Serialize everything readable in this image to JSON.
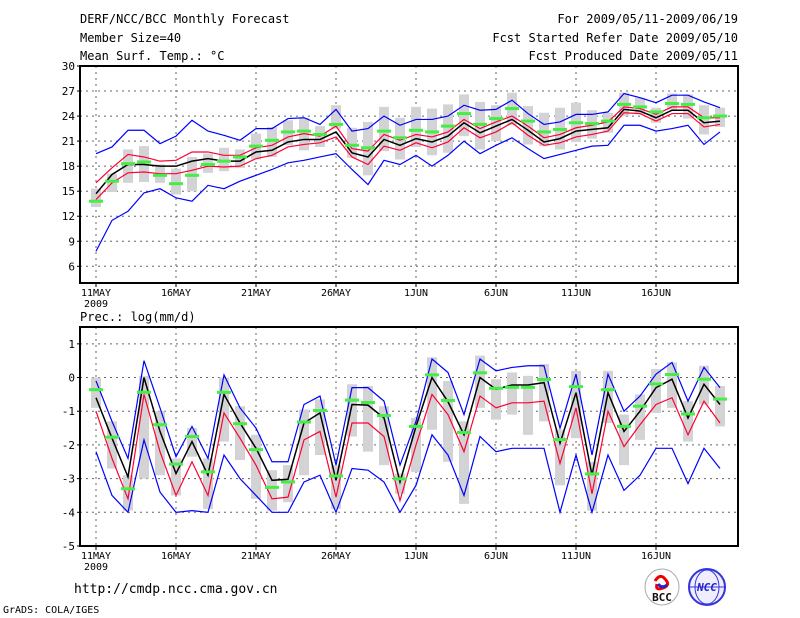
{
  "header": {
    "title": "DERF/NCC/BCC Monthly Forecast",
    "member_size": "Member Size=40",
    "variable": "Mean Surf. Temp.: °C",
    "period": "For 2009/05/11-2009/06/19",
    "refer_date": "Fcst Started Refer Date 2009/05/10",
    "produced_date": "Fcst Produced Date 2009/05/11"
  },
  "footer": {
    "url": "http://cmdp.ncc.cma.gov.cn",
    "credit": "GrADS: COLA/IGES",
    "logos": [
      "BCC",
      "NCC"
    ]
  },
  "colors": {
    "mean": "#000000",
    "quartile": "#ff0033",
    "extreme": "#0000ff",
    "observed": "#44ee44",
    "box": "#d3d3d6"
  },
  "chart_data": [
    {
      "type": "line",
      "title": "Mean Surf. Temp.: °C",
      "ylim": [
        4,
        30
      ],
      "yticks": [
        6,
        9,
        12,
        15,
        18,
        21,
        24,
        27,
        30
      ],
      "xtick_labels": [
        "11MAY",
        "16MAY",
        "21MAY",
        "26MAY",
        "1JUN",
        "6JUN",
        "11JUN",
        "16JUN"
      ],
      "xtick_year": "2009",
      "grid": true,
      "days": 40,
      "series": [
        {
          "name": "max",
          "color": "extreme",
          "values": [
            19.5,
            20.3,
            22.3,
            22.3,
            20.7,
            21.6,
            23.5,
            22.2,
            21.7,
            21.1,
            22.5,
            22.5,
            23.7,
            23.8,
            23.0,
            24.8,
            22.2,
            22.5,
            24.0,
            22.9,
            23.6,
            23.6,
            24.0,
            25.3,
            24.7,
            24.8,
            25.9,
            24.3,
            23.0,
            23.3,
            24.2,
            24.2,
            24.5,
            26.7,
            26.2,
            25.6,
            26.5,
            26.5,
            25.7,
            25.0
          ]
        },
        {
          "name": "min",
          "color": "extreme",
          "values": [
            7.8,
            11.5,
            12.6,
            14.8,
            15.3,
            14.2,
            13.8,
            15.7,
            15.3,
            16.2,
            16.9,
            17.6,
            18.4,
            18.7,
            19.1,
            19.5,
            17.6,
            15.8,
            18.7,
            18.2,
            19.3,
            18.0,
            19.3,
            21.0,
            19.5,
            20.5,
            21.4,
            20.1,
            18.9,
            19.4,
            19.9,
            20.4,
            20.5,
            22.9,
            22.9,
            22.2,
            22.5,
            22.9,
            20.6,
            22.1
          ]
        },
        {
          "name": "upper",
          "color": "quartile",
          "values": [
            16.0,
            17.8,
            19.4,
            19.1,
            18.6,
            18.7,
            19.7,
            19.7,
            19.3,
            19.3,
            20.2,
            20.5,
            21.5,
            21.9,
            21.6,
            22.8,
            20.1,
            19.8,
            21.8,
            21.1,
            21.8,
            21.5,
            22.1,
            23.6,
            22.5,
            23.3,
            24.0,
            22.8,
            21.4,
            21.8,
            22.6,
            22.9,
            23.3,
            25.1,
            24.9,
            24.2,
            25.1,
            25.1,
            23.8,
            23.8
          ]
        },
        {
          "name": "lower",
          "color": "quartile",
          "values": [
            14.0,
            16.0,
            17.2,
            17.3,
            17.1,
            17.1,
            17.5,
            18.0,
            17.9,
            18.0,
            18.9,
            19.3,
            20.3,
            20.6,
            20.8,
            21.5,
            19.1,
            18.2,
            20.4,
            19.9,
            20.8,
            20.2,
            20.9,
            22.6,
            21.4,
            22.1,
            23.2,
            21.7,
            20.5,
            20.8,
            21.5,
            21.8,
            22.2,
            24.4,
            24.3,
            23.4,
            24.3,
            24.3,
            22.7,
            23.0
          ]
        },
        {
          "name": "mean",
          "color": "mean",
          "values": [
            14.7,
            17.0,
            18.2,
            18.2,
            18.0,
            18.0,
            18.6,
            18.9,
            18.6,
            18.6,
            19.7,
            19.9,
            20.9,
            21.2,
            21.2,
            22.1,
            19.6,
            19.1,
            21.2,
            20.5,
            21.3,
            20.9,
            21.6,
            23.2,
            22.0,
            22.8,
            23.6,
            22.3,
            20.9,
            21.3,
            22.2,
            22.4,
            22.6,
            24.8,
            24.6,
            23.8,
            24.7,
            24.7,
            23.2,
            23.4
          ]
        }
      ],
      "box_low": [
        13.1,
        14.9,
        16.0,
        16.1,
        16.0,
        14.6,
        15.0,
        17.2,
        17.4,
        17.8,
        18.8,
        19.1,
        20.5,
        19.9,
        20.3,
        22.5,
        19.0,
        16.9,
        19.8,
        18.8,
        20.3,
        19.3,
        19.6,
        21.6,
        20.0,
        21.0,
        22.9,
        20.6,
        20.4,
        20.0,
        20.9,
        21.3,
        22.0,
        24.0,
        24.2,
        23.2,
        24.8,
        23.7,
        21.8,
        22.7
      ],
      "box_high": [
        15.3,
        17.1,
        20.0,
        20.4,
        18.2,
        17.7,
        19.1,
        19.5,
        20.2,
        20.0,
        21.9,
        22.7,
        23.5,
        23.8,
        22.8,
        25.3,
        22.6,
        23.3,
        25.1,
        23.8,
        25.1,
        24.9,
        25.4,
        26.6,
        25.7,
        25.3,
        26.8,
        25.2,
        24.4,
        25.0,
        25.6,
        24.7,
        24.4,
        26.8,
        26.2,
        25.0,
        26.7,
        26.6,
        25.3,
        25.0
      ],
      "observed": [
        13.8,
        16.2,
        18.3,
        18.5,
        16.9,
        15.9,
        16.9,
        18.2,
        18.6,
        19.1,
        20.4,
        21.1,
        22.1,
        22.2,
        21.8,
        23.0,
        20.5,
        20.2,
        22.2,
        21.4,
        22.3,
        22.1,
        22.8,
        24.3,
        23.0,
        23.7,
        24.9,
        23.4,
        22.1,
        22.4,
        23.2,
        23.1,
        23.4,
        25.4,
        25.1,
        24.5,
        25.5,
        25.4,
        23.8,
        24.0
      ]
    },
    {
      "type": "line",
      "title": "Prec.: log(mm/d)",
      "ylim": [
        -5,
        1.5
      ],
      "yticks": [
        -5,
        -4,
        -3,
        -2,
        -1,
        0,
        1
      ],
      "xtick_labels": [
        "11MAY",
        "16MAY",
        "21MAY",
        "26MAY",
        "1JUN",
        "6JUN",
        "11JUN",
        "16JUN"
      ],
      "xtick_year": "2009",
      "grid": true,
      "days": 40,
      "series": [
        {
          "name": "max",
          "color": "extreme",
          "values": [
            -0.1,
            -1.3,
            -2.4,
            0.5,
            -0.9,
            -2.35,
            -1.45,
            -2.4,
            0.08,
            -0.9,
            -1.5,
            -2.5,
            -2.5,
            -0.8,
            -0.55,
            -2.6,
            -0.3,
            -0.3,
            -0.7,
            -2.6,
            -1.3,
            0.55,
            0.15,
            -1.1,
            0.55,
            0.2,
            0.3,
            0.35,
            0.35,
            -1.5,
            0.1,
            -2.3,
            0.1,
            -1.0,
            -0.55,
            0.1,
            0.45,
            -0.7,
            0.3,
            -0.3
          ]
        },
        {
          "name": "min",
          "color": "extreme",
          "values": [
            -2.2,
            -3.5,
            -4.0,
            -1.85,
            -3.4,
            -4.0,
            -3.95,
            -4.0,
            -2.3,
            -3.0,
            -3.5,
            -4.0,
            -4.0,
            -3.1,
            -2.9,
            -4.0,
            -2.7,
            -2.75,
            -3.1,
            -4.0,
            -3.2,
            -1.7,
            -2.3,
            -3.5,
            -1.75,
            -2.2,
            -2.1,
            -2.1,
            -2.1,
            -4.0,
            -2.3,
            -4.0,
            -2.3,
            -3.35,
            -2.9,
            -2.1,
            -2.1,
            -3.15,
            -2.1,
            -2.7
          ]
        },
        {
          "name": "lower",
          "color": "quartile",
          "values": [
            -1.0,
            -2.4,
            -3.6,
            -0.5,
            -2.2,
            -3.5,
            -2.5,
            -3.5,
            -1.05,
            -1.8,
            -2.6,
            -3.6,
            -3.55,
            -1.85,
            -1.6,
            -3.55,
            -1.35,
            -1.35,
            -1.75,
            -3.65,
            -2.0,
            -0.5,
            -1.1,
            -2.2,
            -0.55,
            -0.9,
            -0.75,
            -0.75,
            -0.7,
            -2.55,
            -0.9,
            -3.45,
            -1.0,
            -2.05,
            -1.4,
            -0.8,
            -0.6,
            -1.7,
            -0.7,
            -1.35
          ]
        },
        {
          "name": "mean",
          "color": "mean",
          "values": [
            -0.6,
            -1.8,
            -2.95,
            0.0,
            -1.6,
            -2.85,
            -1.9,
            -2.9,
            -0.5,
            -1.35,
            -2.1,
            -3.05,
            -3.02,
            -1.35,
            -1.05,
            -3.05,
            -0.8,
            -0.82,
            -1.2,
            -3.1,
            -1.45,
            0.0,
            -0.72,
            -1.7,
            0.0,
            -0.35,
            -0.22,
            -0.22,
            -0.15,
            -1.95,
            -0.45,
            -2.9,
            -0.45,
            -1.6,
            -1.0,
            -0.3,
            -0.05,
            -1.2,
            -0.2,
            -0.8
          ]
        }
      ],
      "box_low": [
        -0.9,
        -2.7,
        -3.95,
        -3.0,
        -2.9,
        -3.5,
        -2.35,
        -3.9,
        -1.9,
        -2.45,
        -3.6,
        -3.95,
        -3.7,
        -2.9,
        -2.3,
        -3.9,
        -1.75,
        -2.2,
        -2.6,
        -3.45,
        -2.8,
        -1.55,
        -2.5,
        -3.75,
        -0.9,
        -1.25,
        -1.1,
        -1.7,
        -1.3,
        -3.2,
        -1.8,
        -3.95,
        -1.35,
        -2.6,
        -1.85,
        -1.05,
        -0.9,
        -1.9,
        -0.8,
        -1.45
      ],
      "box_high": [
        0.0,
        -1.3,
        -2.9,
        0.05,
        -1.0,
        -2.4,
        -1.5,
        -2.4,
        0.0,
        -0.85,
        -1.7,
        -2.75,
        -2.6,
        -0.95,
        -0.65,
        -2.6,
        -0.2,
        -0.25,
        -0.85,
        -2.85,
        -1.2,
        0.6,
        -0.1,
        -1.3,
        0.65,
        -0.05,
        0.15,
        0.05,
        0.4,
        -1.55,
        0.2,
        -2.5,
        0.2,
        -1.1,
        -0.5,
        0.25,
        0.45,
        -0.7,
        0.35,
        -0.25
      ],
      "observed": [
        -0.36,
        -1.77,
        -3.3,
        -0.44,
        -1.4,
        -2.57,
        -1.75,
        -2.8,
        -0.44,
        -1.37,
        -2.14,
        -3.26,
        -3.1,
        -1.32,
        -0.98,
        -2.92,
        -0.67,
        -0.74,
        -1.13,
        -3.01,
        -1.45,
        0.08,
        -0.68,
        -1.63,
        0.14,
        -0.32,
        -0.29,
        -0.29,
        -0.06,
        -1.84,
        -0.27,
        -2.86,
        -0.36,
        -1.45,
        -0.85,
        -0.19,
        0.09,
        -1.08,
        -0.05,
        -0.64
      ]
    }
  ]
}
